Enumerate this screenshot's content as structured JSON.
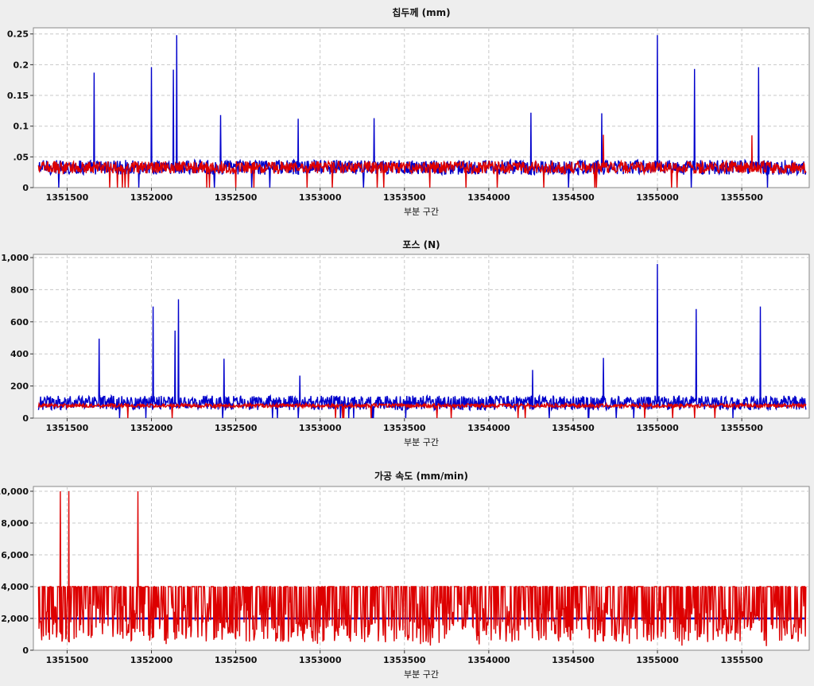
{
  "chart_data": [
    {
      "type": "line",
      "title": "칩두께 (mm)",
      "xlabel": "부분 구간",
      "ylabel": "",
      "xlim": [
        1351300,
        1355900
      ],
      "ylim": [
        0,
        0.26
      ],
      "x_ticks": [
        1351500,
        1352000,
        1352500,
        1353000,
        1353500,
        1354000,
        1354500,
        1355000,
        1355500
      ],
      "x_tick_labels": [
        "1351500",
        "1352000",
        "1352500",
        "1353000",
        "1353500",
        "1354000",
        "1354500",
        "1355000",
        "1355500"
      ],
      "y_ticks": [
        0,
        0.05,
        0.1,
        0.15,
        0.2,
        0.25
      ],
      "y_tick_labels": [
        "0",
        ".05",
        "0.1",
        "0.15",
        "0.2",
        "0.25"
      ],
      "grid": true,
      "series": [
        {
          "color": "#0000cc",
          "baseline": 0.033,
          "noise": 0.012,
          "spikes": [
            {
              "x": 1351660,
              "y": 0.187
            },
            {
              "x": 1352000,
              "y": 0.196
            },
            {
              "x": 1352130,
              "y": 0.192
            },
            {
              "x": 1352150,
              "y": 0.248
            },
            {
              "x": 1352410,
              "y": 0.118
            },
            {
              "x": 1352870,
              "y": 0.112
            },
            {
              "x": 1353320,
              "y": 0.113
            },
            {
              "x": 1354250,
              "y": 0.122
            },
            {
              "x": 1354670,
              "y": 0.121
            },
            {
              "x": 1355000,
              "y": 0.248
            },
            {
              "x": 1355220,
              "y": 0.193
            },
            {
              "x": 1355600,
              "y": 0.196
            }
          ]
        },
        {
          "color": "#dd0000",
          "baseline": 0.033,
          "noise": 0.01,
          "spikes": [
            {
              "x": 1354680,
              "y": 0.086
            },
            {
              "x": 1355560,
              "y": 0.085
            }
          ]
        }
      ]
    },
    {
      "type": "line",
      "title": "포스 (N)",
      "xlabel": "부분 구간",
      "ylabel": "",
      "xlim": [
        1351300,
        1355900
      ],
      "ylim": [
        0,
        1020
      ],
      "x_ticks": [
        1351500,
        1352000,
        1352500,
        1353000,
        1353500,
        1354000,
        1354500,
        1355000,
        1355500
      ],
      "x_tick_labels": [
        "1351500",
        "1352000",
        "1352500",
        "1353000",
        "1353500",
        "1354000",
        "1354500",
        "1355000",
        "1355500"
      ],
      "y_ticks": [
        0,
        200,
        400,
        600,
        800,
        1000
      ],
      "y_tick_labels": [
        "0",
        "200",
        "400",
        "600",
        "800",
        "1,000"
      ],
      "grid": true,
      "series": [
        {
          "color": "#0000cc",
          "baseline": 95,
          "noise": 45,
          "spikes": [
            {
              "x": 1351690,
              "y": 495
            },
            {
              "x": 1352010,
              "y": 695
            },
            {
              "x": 1352140,
              "y": 545
            },
            {
              "x": 1352160,
              "y": 740
            },
            {
              "x": 1352430,
              "y": 370
            },
            {
              "x": 1352880,
              "y": 265
            },
            {
              "x": 1354260,
              "y": 300
            },
            {
              "x": 1354680,
              "y": 375
            },
            {
              "x": 1355000,
              "y": 960
            },
            {
              "x": 1355230,
              "y": 680
            },
            {
              "x": 1355610,
              "y": 695
            }
          ]
        },
        {
          "color": "#dd0000",
          "baseline": 78,
          "noise": 12,
          "spikes": []
        }
      ]
    },
    {
      "type": "line",
      "title": "가공 속도 (mm/min)",
      "xlabel": "부분 구간",
      "ylabel": "",
      "xlim": [
        1351300,
        1355900
      ],
      "ylim": [
        0,
        10300
      ],
      "x_ticks": [
        1351500,
        1352000,
        1352500,
        1353000,
        1353500,
        1354000,
        1354500,
        1355000,
        1355500
      ],
      "x_tick_labels": [
        "1351500",
        "1352000",
        "1352500",
        "1353000",
        "1353500",
        "1354000",
        "1354500",
        "1355000",
        "1355500"
      ],
      "y_ticks": [
        0,
        2000,
        4000,
        6000,
        8000,
        10000
      ],
      "y_tick_labels": [
        "0",
        "2,000",
        "4,000",
        "6,000",
        "8,000",
        "10,000"
      ],
      "grid": true,
      "series": [
        {
          "color": "#0000cc",
          "constant": 2000
        },
        {
          "color": "#dd0000",
          "low": 500,
          "high": 4000,
          "spikes": [
            {
              "x": 1351460,
              "y": 10000
            },
            {
              "x": 1351510,
              "y": 10000
            },
            {
              "x": 1351920,
              "y": 10000
            }
          ]
        }
      ]
    }
  ]
}
